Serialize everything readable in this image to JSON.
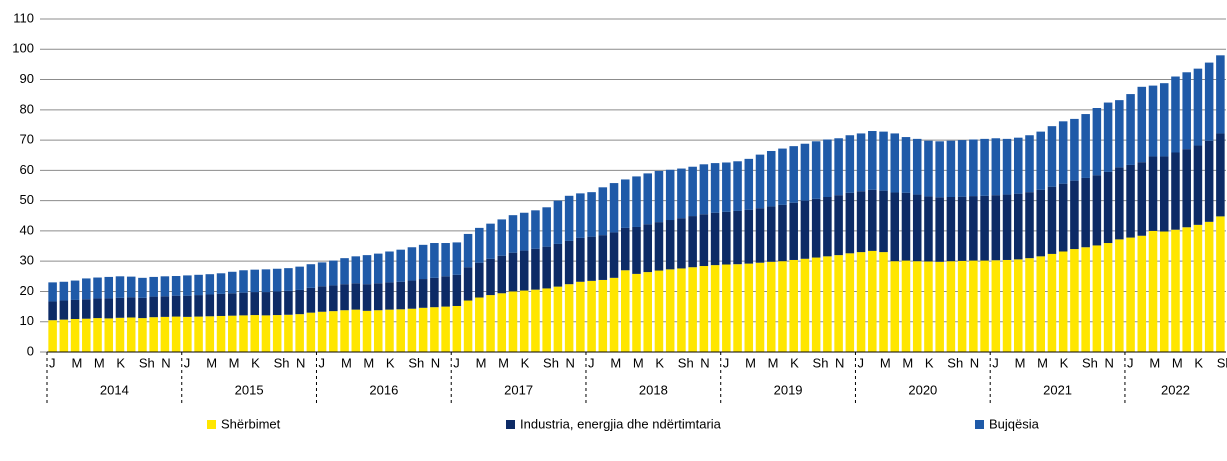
{
  "chart_data": {
    "type": "stacked_bar",
    "categories": [
      "J",
      null,
      "M",
      null,
      "M",
      null,
      "K",
      null,
      "Sh",
      null,
      "N",
      null,
      "J",
      null,
      "M",
      null,
      "M",
      null,
      "K",
      null,
      "Sh",
      null,
      "N",
      null,
      "J",
      null,
      "M",
      null,
      "M",
      null,
      "K",
      null,
      "Sh",
      null,
      "N",
      null,
      "J",
      null,
      "M",
      null,
      "M",
      null,
      "K",
      null,
      "Sh",
      null,
      "N",
      null,
      "J",
      null,
      "M",
      null,
      "M",
      null,
      "K",
      null,
      "Sh",
      null,
      "N",
      null,
      "J",
      null,
      "M",
      null,
      "M",
      null,
      "K",
      null,
      "Sh",
      null,
      "N",
      null,
      "J",
      null,
      "M",
      null,
      "M",
      null,
      "K",
      null,
      "Sh",
      null,
      "N",
      null,
      "J",
      null,
      "M",
      null,
      "M",
      null,
      "K",
      null,
      "Sh",
      null,
      "N",
      null,
      "J",
      null,
      "M",
      null,
      "M",
      null,
      "K",
      null,
      "Sh"
    ],
    "year_labels": [
      "2014",
      "2015",
      "2016",
      "2017",
      "2018",
      "2019",
      "2020",
      "2021",
      "2022"
    ],
    "series": [
      {
        "name": "Shërbimet",
        "color": "#ffe600",
        "values": [
          10.5,
          10.7,
          10.9,
          11.0,
          11.2,
          11.1,
          11.3,
          11.4,
          11.2,
          11.5,
          11.6,
          11.7,
          11.6,
          11.7,
          11.8,
          11.9,
          12.0,
          12.1,
          12.2,
          12.1,
          12.2,
          12.3,
          12.5,
          13.0,
          13.3,
          13.5,
          13.8,
          14.0,
          13.6,
          13.8,
          14.0,
          14.1,
          14.3,
          14.6,
          14.8,
          15.0,
          15.2,
          17.0,
          18.0,
          18.8,
          19.4,
          20.0,
          20.3,
          20.6,
          21.0,
          21.6,
          22.4,
          23.2,
          23.5,
          23.8,
          24.5,
          27.0,
          25.8,
          26.4,
          26.9,
          27.3,
          27.6,
          28.0,
          28.4,
          28.7,
          28.9,
          29.0,
          29.2,
          29.5,
          29.8,
          30.0,
          30.4,
          30.8,
          31.2,
          31.6,
          32.0,
          32.6,
          33.0,
          33.4,
          33.0,
          30.0,
          30.2,
          30.0,
          29.9,
          29.8,
          30.0,
          30.1,
          30.2,
          30.2,
          30.3,
          30.4,
          30.6,
          31.0,
          31.6,
          32.4,
          33.2,
          34.0,
          34.6,
          35.2,
          36.0,
          37.2,
          37.8,
          38.4,
          40.0,
          39.8,
          40.4,
          41.2,
          42.0,
          43.0,
          44.8
        ]
      },
      {
        "name": "Industria, energjia dhe ndërtimtaria",
        "color": "#0d2b66",
        "values": [
          6.2,
          6.3,
          6.3,
          6.4,
          6.5,
          6.6,
          6.6,
          6.7,
          6.7,
          6.8,
          6.8,
          6.9,
          7.0,
          7.1,
          7.2,
          7.3,
          7.4,
          7.5,
          7.6,
          7.7,
          7.8,
          7.9,
          8.0,
          8.2,
          8.4,
          8.5,
          8.6,
          8.7,
          8.8,
          8.9,
          9.0,
          9.1,
          9.3,
          9.5,
          9.7,
          10.0,
          10.3,
          11.0,
          11.5,
          12.0,
          12.4,
          12.8,
          13.2,
          13.5,
          13.8,
          14.1,
          14.3,
          14.5,
          14.6,
          14.8,
          15.0,
          14.0,
          15.5,
          15.8,
          16.0,
          16.3,
          16.6,
          16.9,
          17.1,
          17.3,
          17.4,
          17.6,
          17.8,
          18.0,
          18.3,
          18.6,
          18.9,
          19.2,
          19.4,
          19.6,
          19.8,
          20.0,
          20.1,
          20.2,
          20.3,
          22.7,
          22.4,
          22.0,
          21.5,
          21.3,
          21.2,
          21.2,
          21.3,
          21.4,
          21.5,
          21.6,
          21.7,
          21.8,
          22.0,
          22.2,
          22.4,
          22.6,
          22.9,
          23.2,
          23.5,
          23.8,
          24.0,
          24.3,
          24.6,
          24.8,
          25.5,
          25.8,
          26.2,
          26.8,
          27.4
        ]
      },
      {
        "name": "Bujqësia",
        "color": "#1f5aa8",
        "values": [
          6.3,
          6.2,
          6.4,
          6.9,
          6.9,
          7.1,
          7.1,
          6.8,
          6.6,
          6.5,
          6.6,
          6.5,
          6.7,
          6.7,
          6.7,
          6.8,
          7.1,
          7.4,
          7.4,
          7.5,
          7.5,
          7.5,
          7.7,
          7.8,
          7.9,
          8.2,
          8.6,
          8.9,
          9.6,
          9.8,
          10.2,
          10.6,
          11.0,
          11.3,
          11.5,
          11.0,
          10.7,
          11.0,
          11.5,
          11.6,
          12.0,
          12.4,
          12.5,
          12.7,
          13.0,
          14.3,
          14.9,
          14.7,
          14.7,
          15.8,
          16.3,
          16.0,
          16.7,
          16.8,
          16.9,
          16.6,
          16.4,
          16.3,
          16.5,
          16.4,
          16.3,
          16.4,
          16.8,
          17.7,
          18.3,
          18.6,
          18.7,
          18.8,
          19.0,
          19.0,
          18.8,
          19.0,
          19.1,
          19.4,
          19.5,
          19.5,
          18.4,
          18.4,
          18.4,
          18.5,
          18.6,
          18.7,
          18.7,
          18.8,
          18.8,
          18.4,
          18.5,
          18.8,
          19.2,
          20.0,
          20.6,
          20.4,
          21.1,
          22.2,
          22.9,
          22.2,
          23.4,
          24.9,
          23.4,
          24.2,
          25.1,
          25.4,
          25.4,
          25.8,
          25.8
        ]
      }
    ],
    "ylim": [
      0,
      110
    ],
    "yticks": [
      0,
      10,
      20,
      30,
      40,
      50,
      60,
      70,
      80,
      90,
      100,
      110
    ],
    "grid": true
  }
}
